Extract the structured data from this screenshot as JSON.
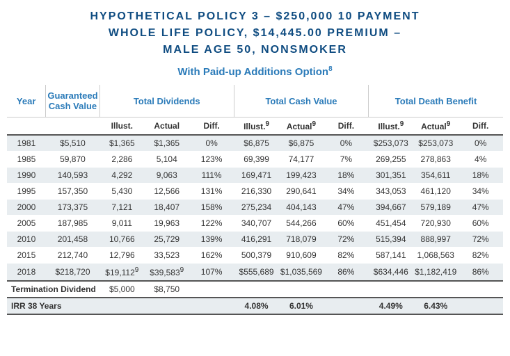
{
  "title_line1": "HYPOTHETICAL POLICY 3 – $250,000 10 PAYMENT",
  "title_line2": "WHOLE LIFE POLICY, $14,445.00 PREMIUM –",
  "title_line3": "MALE AGE 50, NONSMOKER",
  "subtitle": "With Paid-up Additions Option",
  "subtitle_sup": "8",
  "headers": {
    "year": "Year",
    "gcv": "Guaranteed Cash Value",
    "td": "Total Dividends",
    "tcv": "Total Cash Value",
    "tdb": "Total Death Benefit",
    "illust": "Illust.",
    "actual": "Actual",
    "diff": "Diff.",
    "illust9": "Illust.",
    "actual9": "Actual",
    "sup9": "9"
  },
  "rows": [
    {
      "year": "1981",
      "gcv": "$5,510",
      "td_i": "$1,365",
      "td_a": "$1,365",
      "td_d": "0%",
      "cv_i": "$6,875",
      "cv_a": "$6,875",
      "cv_d": "0%",
      "db_i": "$253,073",
      "db_a": "$253,073",
      "db_d": "0%"
    },
    {
      "year": "1985",
      "gcv": "59,870",
      "td_i": "2,286",
      "td_a": "5,104",
      "td_d": "123%",
      "cv_i": "69,399",
      "cv_a": "74,177",
      "cv_d": "7%",
      "db_i": "269,255",
      "db_a": "278,863",
      "db_d": "4%"
    },
    {
      "year": "1990",
      "gcv": "140,593",
      "td_i": "4,292",
      "td_a": "9,063",
      "td_d": "111%",
      "cv_i": "169,471",
      "cv_a": "199,423",
      "cv_d": "18%",
      "db_i": "301,351",
      "db_a": "354,611",
      "db_d": "18%"
    },
    {
      "year": "1995",
      "gcv": "157,350",
      "td_i": "5,430",
      "td_a": "12,566",
      "td_d": "131%",
      "cv_i": "216,330",
      "cv_a": "290,641",
      "cv_d": "34%",
      "db_i": "343,053",
      "db_a": "461,120",
      "db_d": "34%"
    },
    {
      "year": "2000",
      "gcv": "173,375",
      "td_i": "7,121",
      "td_a": "18,407",
      "td_d": "158%",
      "cv_i": "275,234",
      "cv_a": "404,143",
      "cv_d": "47%",
      "db_i": "394,667",
      "db_a": "579,189",
      "db_d": "47%"
    },
    {
      "year": "2005",
      "gcv": "187,985",
      "td_i": "9,011",
      "td_a": "19,963",
      "td_d": "122%",
      "cv_i": "340,707",
      "cv_a": "544,266",
      "cv_d": "60%",
      "db_i": "451,454",
      "db_a": "720,930",
      "db_d": "60%"
    },
    {
      "year": "2010",
      "gcv": "201,458",
      "td_i": "10,766",
      "td_a": "25,729",
      "td_d": "139%",
      "cv_i": "416,291",
      "cv_a": "718,079",
      "cv_d": "72%",
      "db_i": "515,394",
      "db_a": "888,997",
      "db_d": "72%"
    },
    {
      "year": "2015",
      "gcv": "212,740",
      "td_i": "12,796",
      "td_a": "33,523",
      "td_d": "162%",
      "cv_i": "500,379",
      "cv_a": "910,609",
      "cv_d": "82%",
      "db_i": "587,141",
      "db_a": "1,068,563",
      "db_d": "82%"
    }
  ],
  "row2018": {
    "year": "2018",
    "gcv": "$218,720",
    "td_i": "$19,112",
    "td_a": "$39,583",
    "td_d": "107%",
    "cv_i": "$555,689",
    "cv_a": "$1,035,569",
    "cv_d": "86%",
    "db_i": "$634,446",
    "db_a": "$1,182,419",
    "db_d": "86%",
    "sup": "9"
  },
  "termdiv": {
    "label": "Termination Dividend",
    "i": "$5,000",
    "a": "$8,750"
  },
  "irr": {
    "label": "IRR 38 Years",
    "cv_i": "4.08%",
    "cv_a": "6.01%",
    "db_i": "4.49%",
    "db_a": "6.43%"
  },
  "colors": {
    "title": "#0f4c81",
    "accent": "#2b7bb9",
    "stripe": "#e8edf0",
    "border": "#555"
  }
}
